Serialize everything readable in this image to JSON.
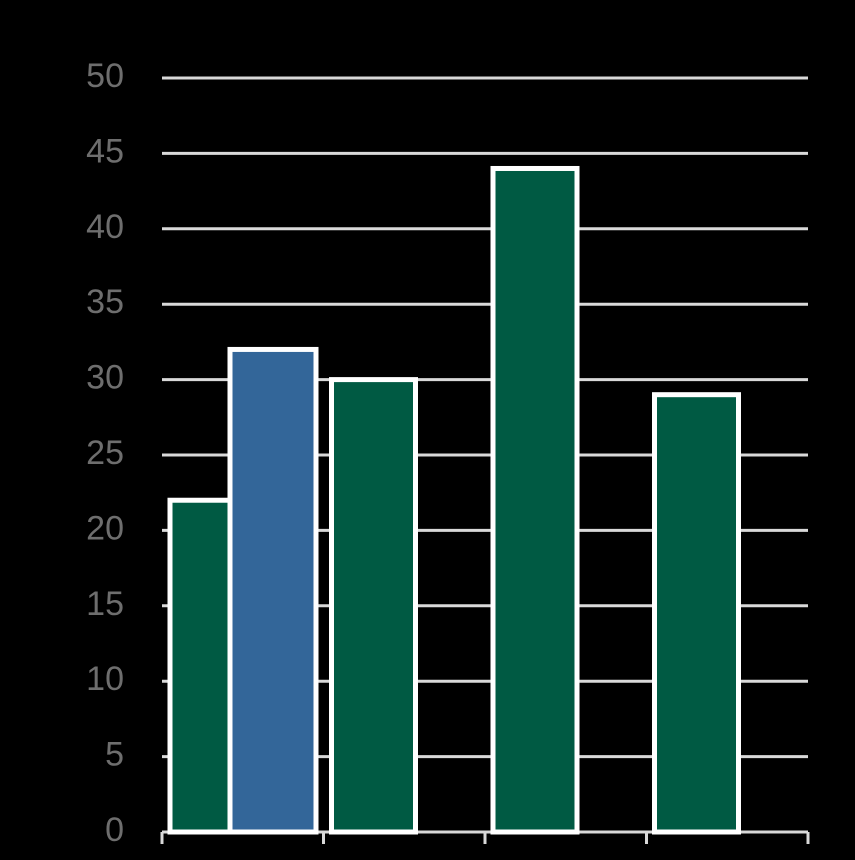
{
  "chart_data": {
    "type": "bar",
    "categories": [
      null,
      null,
      null,
      null
    ],
    "series": [
      {
        "color": "#005a43",
        "values": [
          22,
          30,
          44,
          29
        ]
      },
      {
        "color": "#336699",
        "values": [
          32,
          null,
          null,
          null
        ]
      }
    ],
    "ylim": [
      0,
      50
    ],
    "yticks": [
      0,
      5,
      10,
      15,
      20,
      25,
      30,
      35,
      40,
      45,
      50
    ],
    "grid": true
  }
}
